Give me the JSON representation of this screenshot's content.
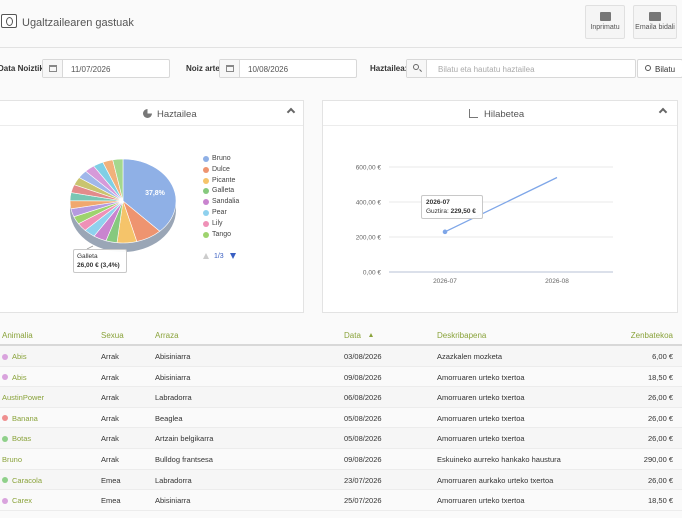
{
  "header": {
    "title": "Ugaltzailearen gastuak",
    "print_label": "Inprimatu",
    "email_label": "Emaila bidali"
  },
  "filters": {
    "date_from_label": "Data Noiztik",
    "date_from_value": "11/07/2026",
    "date_to_label": "Noiz arte",
    "date_to_value": "10/08/2026",
    "owner_label": "Haztailea:",
    "owner_placeholder": "Bilatu eta hautatu haztailea",
    "search_label": "Bilatu"
  },
  "pie_panel": {
    "title": "Haztailea",
    "slice_label": "37,8%",
    "legend": [
      {
        "name": "Bruno",
        "color": "#8fb0e6"
      },
      {
        "name": "Dulce",
        "color": "#ee9470"
      },
      {
        "name": "Picante",
        "color": "#f5c46a"
      },
      {
        "name": "Galleta",
        "color": "#86c97e"
      },
      {
        "name": "Sandalia",
        "color": "#c984cf"
      },
      {
        "name": "Pear",
        "color": "#8fd1ee"
      },
      {
        "name": "Lily",
        "color": "#ef91b7"
      },
      {
        "name": "Tango",
        "color": "#9ed36e"
      }
    ],
    "pager": "1/3",
    "tooltip": {
      "name": "Galleta",
      "value": "26,00 € (3,4%)"
    }
  },
  "line_panel": {
    "title": "Hilabetea",
    "tooltip": {
      "month": "2026-07",
      "label": "Guztira:",
      "value": "229,50 €"
    }
  },
  "chart_data": [
    {
      "type": "pie",
      "title": "Haztailea",
      "labels": [
        "Bruno",
        "Dulce",
        "Picante",
        "Galleta",
        "Sandalia",
        "Pear",
        "Lily",
        "Tango"
      ],
      "values_percent": [
        37.8,
        8.0,
        6.0,
        3.4,
        4.0,
        3.5,
        3.2,
        3.0
      ],
      "annotated": {
        "label": "Galleta",
        "value": 26.0,
        "percent": 3.4
      },
      "legend_position": "right"
    },
    {
      "type": "line",
      "title": "Hilabetea",
      "categories": [
        "2026-07",
        "2026-08"
      ],
      "series": [
        {
          "values": [
            229.5,
            540
          ]
        }
      ],
      "yticks": [
        "0,00 €",
        "200,00 €",
        "400,00 €",
        "600,00 €"
      ],
      "ylim": [
        0,
        600
      ],
      "grid": true
    }
  ],
  "table": {
    "headers": [
      "Animalia",
      "Sexua",
      "Arraza",
      "Data",
      "Deskribapena",
      "Zenbatekoa"
    ],
    "rows": [
      {
        "name": "Abis",
        "dot": "#d9a3dd",
        "sex": "Arrak",
        "breed": "Abisiniarra",
        "date": "03/08/2026",
        "desc": "Azazkalen mozketa",
        "amount": "6,00 €"
      },
      {
        "name": "Abis",
        "dot": "#d9a3dd",
        "sex": "Arrak",
        "breed": "Abisiniarra",
        "date": "09/08/2026",
        "desc": "Amorruaren urteko txertoa",
        "amount": "18,50 €"
      },
      {
        "name": "AustinPower",
        "dot": "",
        "sex": "Arrak",
        "breed": "Labradorra",
        "date": "06/08/2026",
        "desc": "Amorruaren urteko txertoa",
        "amount": "26,00 €"
      },
      {
        "name": "Banana",
        "dot": "#ef8f8f",
        "sex": "Arrak",
        "breed": "Beaglea",
        "date": "05/08/2026",
        "desc": "Amorruaren urteko txertoa",
        "amount": "26,00 €"
      },
      {
        "name": "Botas",
        "dot": "#8fd08a",
        "sex": "Arrak",
        "breed": "Artzain belgikarra",
        "date": "05/08/2026",
        "desc": "Amorruaren urteko txertoa",
        "amount": "26,00 €"
      },
      {
        "name": "Bruno",
        "dot": "",
        "sex": "Arrak",
        "breed": "Bulldog frantsesa",
        "date": "09/08/2026",
        "desc": "Eskuineko aurreko hankako haustura",
        "amount": "290,00 €"
      },
      {
        "name": "Caracola",
        "dot": "#8fd08a",
        "sex": "Emea",
        "breed": "Labradorra",
        "date": "23/07/2026",
        "desc": "Amorruaren aurkako urteko txertoa",
        "amount": "26,00 €"
      },
      {
        "name": "Carex",
        "dot": "#d9a3dd",
        "sex": "Emea",
        "breed": "Abisiniarra",
        "date": "25/07/2026",
        "desc": "Amorruaren urteko txertoa",
        "amount": "18,50 €"
      }
    ]
  }
}
